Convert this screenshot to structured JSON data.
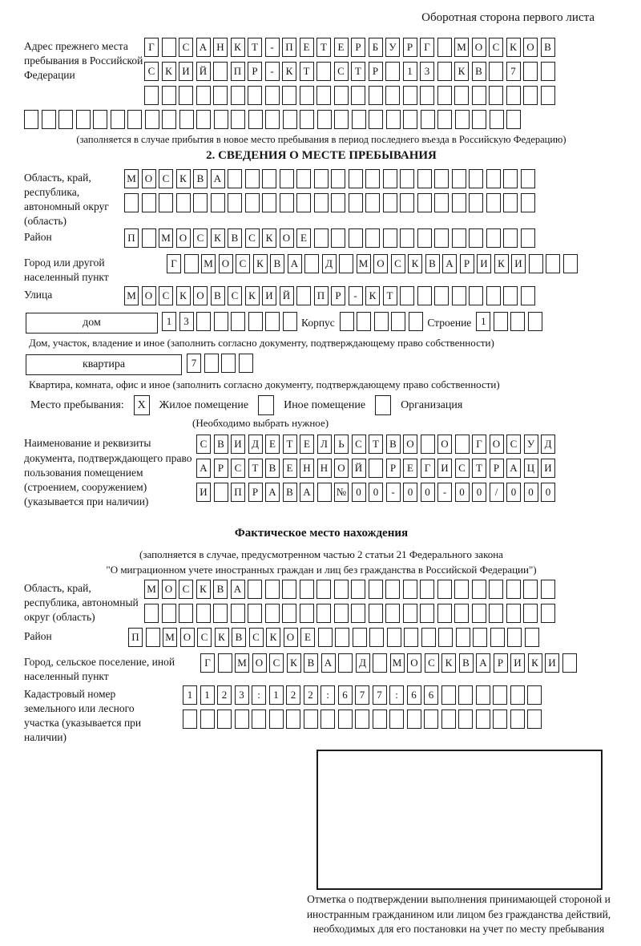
{
  "page": {
    "header_note": "Оборотная сторона первого листа"
  },
  "prev_address": {
    "label": "Адрес прежнего места пребывания в Российской Федерации",
    "rows": [
      {
        "len": 24,
        "text": "Г САНКТ-ПЕТЕРБУРГ МОСКОВ"
      },
      {
        "len": 24,
        "text": "СКИЙ ПР-КТ СТР 13 КВ 7"
      },
      {
        "len": 24,
        "text": ""
      },
      {
        "len": 29,
        "text": ""
      }
    ],
    "note": "(заполняется в случае прибытия в новое место пребывания в период последнего въезда в Российскую Федерацию)"
  },
  "section2": {
    "title": "2. СВЕДЕНИЯ О МЕСТЕ ПРЕБЫВАНИЯ",
    "region": {
      "label": "Область, край, республика, автономный округ (область)",
      "rows": [
        {
          "len": 24,
          "text": "МОСКВА"
        },
        {
          "len": 24,
          "text": ""
        }
      ]
    },
    "district": {
      "label": "Район",
      "row": {
        "len": 24,
        "text": "П МОСКВСКОЕ"
      }
    },
    "city": {
      "label": "Город или другой населенный пункт",
      "row": {
        "len": 24,
        "text": "Г МОСКВА Д МОСКВАРИКИ"
      }
    },
    "street": {
      "label": "Улица",
      "row": {
        "len": 24,
        "text": "МОСКОВСКИЙ ПР-КТ"
      }
    },
    "house": {
      "box_label": "дом",
      "digits": {
        "len": 8,
        "text": "13"
      },
      "korpus_label": "Корпус",
      "korpus": {
        "len": 5,
        "text": ""
      },
      "stroenie_label": "Строение",
      "stroenie": {
        "len": 4,
        "text": "1"
      }
    },
    "house_note": "Дом, участок, владение и иное (заполнить согласно документу, подтверждающему право собственности)",
    "apartment": {
      "box_label": "квартира",
      "digits": {
        "len": 4,
        "text": "7"
      }
    },
    "apartment_note": "Квартира, комната, офис и иное (заполнить согласно документу, подтверждающему право собственности)",
    "stay_type": {
      "label": "Место пребывания:",
      "options": [
        {
          "label": "Жилое помещение",
          "mark": "X"
        },
        {
          "label": "Иное помещение",
          "mark": ""
        },
        {
          "label": "Организация",
          "mark": ""
        }
      ],
      "note": "(Необходимо выбрать нужное)"
    },
    "document": {
      "label": "Наименование и реквизиты документа, подтверждающего право пользования помещением (строением, сооружением) (указывается при наличии)",
      "rows": [
        {
          "len": 21,
          "text": "СВИДЕТЕЛЬСТВО О ГОСУД"
        },
        {
          "len": 21,
          "text": "АРСТВЕННОЙ РЕГИСТРАЦИ"
        },
        {
          "len": 21,
          "text": "И ПРАВА №00-00-00/000"
        }
      ]
    }
  },
  "actual_location": {
    "title": "Фактическое место нахождения",
    "note1": "(заполняется в случае, предусмотренном частью 2 статьи 21 Федерального закона",
    "note2": "\"О миграционном учете иностранных граждан и лиц без гражданства в Российской Федерации\")",
    "region": {
      "label": "Область, край, республика, автономный округ (область)",
      "rows": [
        {
          "len": 24,
          "text": "МОСКВА"
        },
        {
          "len": 24,
          "text": ""
        }
      ]
    },
    "district": {
      "label": "Район",
      "row": {
        "len": 24,
        "text": "П МОСКВСКОЕ"
      }
    },
    "city": {
      "label": "Город, сельское поселение, иной населенный пункт",
      "row": {
        "len": 22,
        "text": "Г МОСКВА Д МОСКВАРИКИ"
      }
    },
    "cadastral": {
      "label": "Кадастровый номер земельного или лесного участка (указывается при наличии)",
      "rows": [
        {
          "len": 21,
          "text": "1123:122:677:66"
        },
        {
          "len": 21,
          "text": ""
        }
      ]
    },
    "stamp_caption": "Отметка о подтверждении выполнения принимающей стороной и иностранным гражданином или лицом без гражданства действий, необходимых для его постановки на учет по месту пребывания"
  }
}
